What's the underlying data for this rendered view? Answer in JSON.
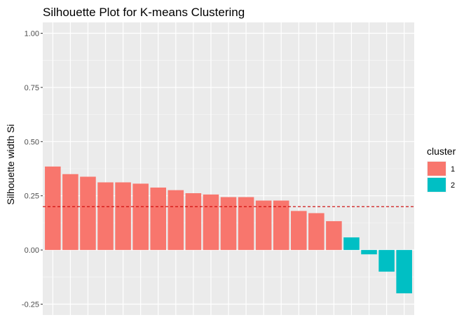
{
  "chart_data": {
    "type": "bar",
    "title": "Silhouette Plot for K-means Clustering",
    "xlabel": "",
    "ylabel": "Silhouette width Si",
    "ylim": [
      -0.25,
      1.0
    ],
    "yticks": [
      "-0.25",
      "0.00",
      "0.25",
      "0.50",
      "0.75",
      "1.00"
    ],
    "ytick_values": [
      -0.25,
      0.0,
      0.25,
      0.5,
      0.75,
      1.0
    ],
    "grid": true,
    "legend_position": "right",
    "reference_line": {
      "y": 0.2,
      "style": "dashed",
      "color": "#CC0000"
    },
    "legend": {
      "title": "cluster",
      "entries": [
        {
          "label": "1",
          "color": "#F8766D"
        },
        {
          "label": "2",
          "color": "#00BFC4"
        }
      ]
    },
    "values": [
      0.385,
      0.35,
      0.338,
      0.312,
      0.312,
      0.306,
      0.288,
      0.276,
      0.262,
      0.256,
      0.244,
      0.244,
      0.228,
      0.228,
      0.18,
      0.17,
      0.133,
      0.058,
      -0.02,
      -0.1,
      -0.2
    ],
    "clusters": [
      "1",
      "1",
      "1",
      "1",
      "1",
      "1",
      "1",
      "1",
      "1",
      "1",
      "1",
      "1",
      "1",
      "1",
      "1",
      "1",
      "1",
      "2",
      "2",
      "2",
      "2"
    ]
  }
}
